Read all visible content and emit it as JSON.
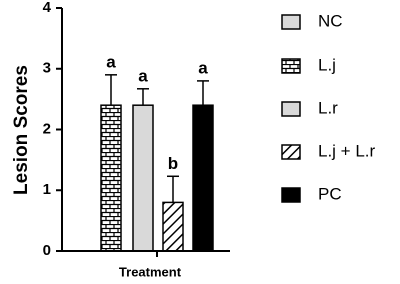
{
  "chart_data": {
    "type": "bar",
    "x_label": "Treatment",
    "y_label": "Lesion Scores",
    "categories": [
      "Treatment"
    ],
    "ylim": [
      0,
      4
    ],
    "yticks": [
      0,
      1,
      2,
      3,
      4
    ],
    "series": [
      {
        "name": "NC",
        "color": "#d9d9d9",
        "pattern": "none",
        "values": [
          null
        ]
      },
      {
        "name": "L.j",
        "color": "#ffffff",
        "pattern": "brick",
        "values": [
          2.4
        ],
        "errors": [
          0.5
        ],
        "letter": "a"
      },
      {
        "name": "L.r",
        "color": "#d9d9d9",
        "pattern": "none",
        "values": [
          2.4
        ],
        "errors": [
          0.27
        ],
        "letter": "a"
      },
      {
        "name": "L.j + L.r",
        "color": "#ffffff",
        "pattern": "hatch",
        "values": [
          0.8
        ],
        "errors": [
          0.43
        ],
        "letter": "b"
      },
      {
        "name": "PC",
        "color": "#000000",
        "pattern": "none",
        "values": [
          2.4
        ],
        "errors": [
          0.4
        ],
        "letter": "a"
      }
    ]
  }
}
